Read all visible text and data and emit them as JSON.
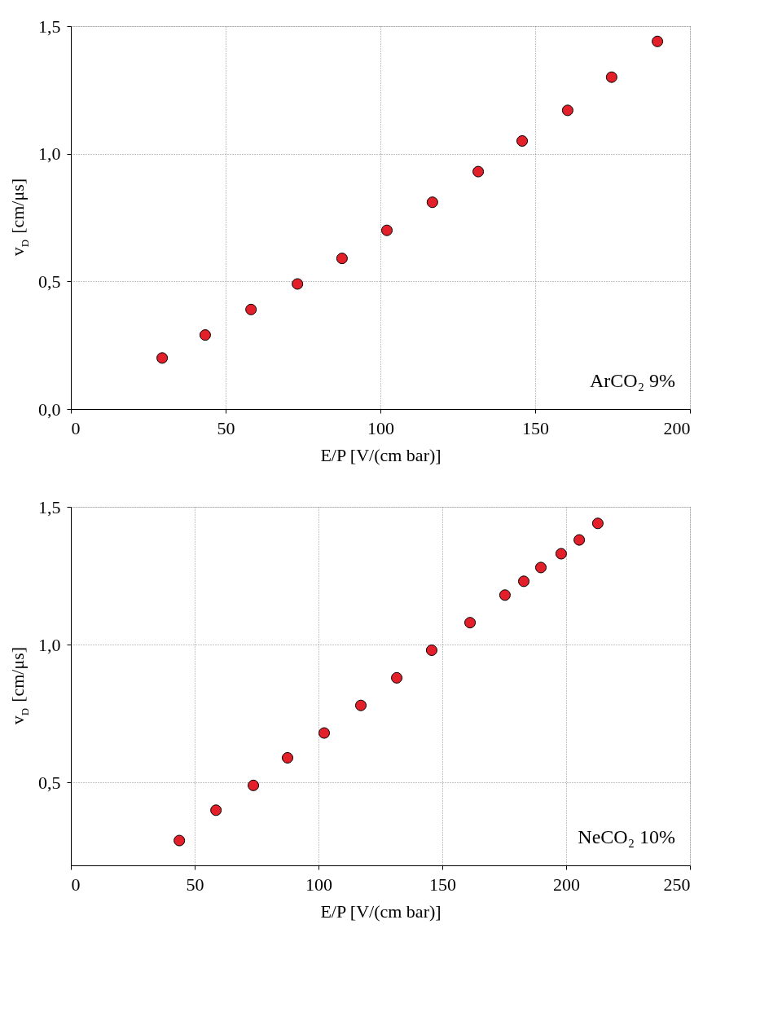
{
  "chart_data": [
    {
      "type": "scatter",
      "xlabel": "E/P [V/(cm bar)]",
      "ylabel": "v$_{D}$ [cm/μs]",
      "annotations": [
        "ArCO₂ 9%"
      ],
      "marker": "circle",
      "grid": true,
      "legend": false,
      "x": [
        29.5,
        43.4,
        58.2,
        73.2,
        87.6,
        102.1,
        116.8,
        131.6,
        145.8,
        160.5,
        174.7,
        189.5
      ],
      "series": [
        {
          "color": "#e3202a",
          "values": [
            0.2,
            0.29,
            0.39,
            0.49,
            0.59,
            0.7,
            0.81,
            0.93,
            1.05,
            1.17,
            1.3,
            1.44
          ]
        }
      ],
      "xlim": [
        0,
        200
      ],
      "xticks": [
        0,
        50,
        100,
        150,
        200
      ],
      "ylim": [
        0,
        1.5
      ],
      "yticks": [
        {
          "value": 0,
          "label": "0,0"
        },
        {
          "value": 0.5,
          "label": "0,5"
        },
        {
          "value": 1.0,
          "label": "1,0"
        },
        {
          "value": 1.5,
          "label": "1,5"
        }
      ]
    },
    {
      "type": "scatter",
      "xlabel": "E/P [V/(cm bar)]",
      "ylabel": "v$_{D}$ [cm/μs]",
      "annotations": [
        "NeCO₂ 10%"
      ],
      "marker": "circle",
      "grid": true,
      "legend": false,
      "x": [
        43.8,
        58.6,
        73.7,
        87.5,
        102.3,
        117.1,
        131.6,
        145.7,
        161.2,
        175.3,
        182.9,
        189.8,
        198.0,
        205.3,
        212.8
      ],
      "series": [
        {
          "color": "#e3202a",
          "values": [
            0.29,
            0.4,
            0.49,
            0.59,
            0.68,
            0.78,
            0.88,
            0.98,
            1.08,
            1.18,
            1.23,
            1.28,
            1.33,
            1.38,
            1.44
          ]
        }
      ],
      "xlim": [
        0,
        250
      ],
      "xticks": [
        0,
        50,
        100,
        150,
        200,
        250
      ],
      "ylim": [
        0.2,
        1.5
      ],
      "yticks": [
        {
          "value": 0.5,
          "label": "0,5"
        },
        {
          "value": 1.0,
          "label": "1,0"
        },
        {
          "value": 1.5,
          "label": "1,5"
        }
      ]
    }
  ]
}
